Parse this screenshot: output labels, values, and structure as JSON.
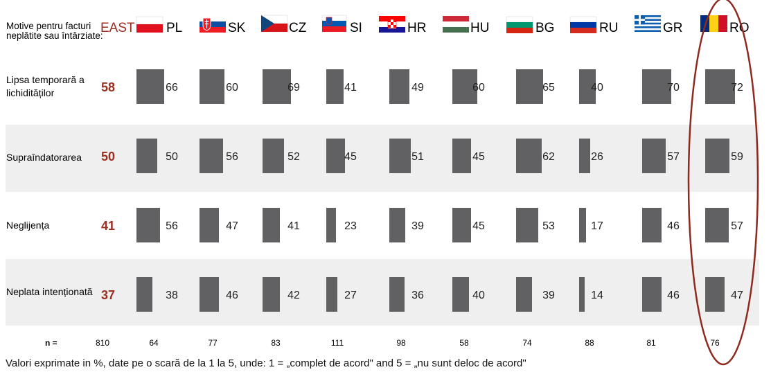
{
  "chart_data": {
    "type": "bar",
    "header_label": [
      "Motive pentru facturi",
      "neplătite sau întârziate:"
    ],
    "aggregate_label": "EAST",
    "countries": [
      "PL",
      "SK",
      "CZ",
      "SI",
      "HR",
      "HU",
      "BG",
      "RU",
      "GR",
      "RO"
    ],
    "categories": [
      [
        "Lipsa temporară a",
        "lichidităților"
      ],
      [
        "Supraîndatorarea"
      ],
      [
        "Neglijența"
      ],
      [
        "Neplata intenționată"
      ]
    ],
    "east_values": [
      58,
      50,
      41,
      37
    ],
    "values": [
      [
        66,
        60,
        69,
        41,
        49,
        60,
        65,
        40,
        70,
        72
      ],
      [
        50,
        56,
        52,
        45,
        51,
        45,
        62,
        26,
        57,
        59
      ],
      [
        56,
        47,
        41,
        23,
        39,
        45,
        53,
        17,
        46,
        57
      ],
      [
        38,
        46,
        42,
        27,
        36,
        40,
        39,
        14,
        46,
        47
      ]
    ],
    "n_label": "n =",
    "n_east": "810",
    "n_values": [
      "64",
      "77",
      "83",
      "111",
      "98",
      "58",
      "74",
      "88",
      "81",
      "76"
    ],
    "highlighted_country": "RO",
    "colors": {
      "bar": "#616062",
      "band": "#efefef",
      "accent": "#9b2f21"
    },
    "flag_icons": [
      "flag-pl-icon",
      "flag-sk-icon",
      "flag-cz-icon",
      "flag-si-icon",
      "flag-hr-icon",
      "flag-hu-icon",
      "flag-bg-icon",
      "flag-ru-icon",
      "flag-gr-icon",
      "flag-ro-icon"
    ]
  },
  "footnote": "Valori exprimate in %, date pe o scară de la 1 la 5, unde: 1 = „complet de acord\" and 5 = „nu sunt deloc de acord\""
}
